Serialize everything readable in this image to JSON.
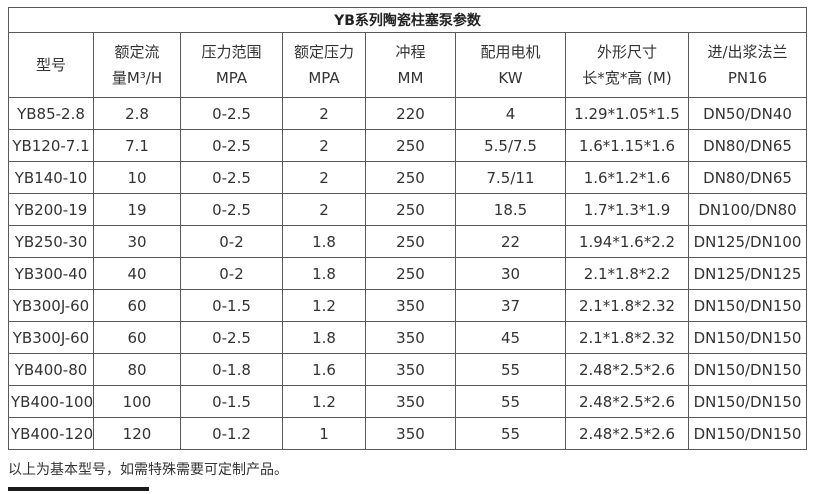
{
  "table": {
    "title": "YB系列陶瓷柱塞泵参数",
    "columns": [
      {
        "key": "model",
        "line1": "型号",
        "line2": ""
      },
      {
        "key": "rated-flow",
        "line1": "额定流",
        "line2": "量M³/H"
      },
      {
        "key": "pressure-range",
        "line1": "压力范围",
        "line2": "MPA"
      },
      {
        "key": "rated-pressure",
        "line1": "额定压力",
        "line2": "MPA"
      },
      {
        "key": "stroke",
        "line1": "冲程",
        "line2": "MM"
      },
      {
        "key": "motor",
        "line1": "配用电机",
        "line2": "KW"
      },
      {
        "key": "dimensions",
        "line1": "外形尺寸",
        "line2": "长*宽*高 (M)"
      },
      {
        "key": "flange",
        "line1": "进/出浆法兰",
        "line2": "PN16"
      }
    ],
    "rows": [
      [
        "YB85-2.8",
        "2.8",
        "0-2.5",
        "2",
        "220",
        "4",
        "1.29*1.05*1.5",
        "DN50/DN40"
      ],
      [
        "YB120-7.1",
        "7.1",
        "0-2.5",
        "2",
        "250",
        "5.5/7.5",
        "1.6*1.15*1.6",
        "DN80/DN65"
      ],
      [
        "YB140-10",
        "10",
        "0-2.5",
        "2",
        "250",
        "7.5/11",
        "1.6*1.2*1.6",
        "DN80/DN65"
      ],
      [
        "YB200-19",
        "19",
        "0-2.5",
        "2",
        "250",
        "18.5",
        "1.7*1.3*1.9",
        "DN100/DN80"
      ],
      [
        "YB250-30",
        "30",
        "0-2",
        "1.8",
        "250",
        "22",
        "1.94*1.6*2.2",
        "DN125/DN100"
      ],
      [
        "YB300-40",
        "40",
        "0-2",
        "1.8",
        "250",
        "30",
        "2.1*1.8*2.2",
        "DN125/DN125"
      ],
      [
        "YB300J-60",
        "60",
        "0-1.5",
        "1.2",
        "350",
        "37",
        "2.1*1.8*2.32",
        "DN150/DN150"
      ],
      [
        "YB300J-60",
        "60",
        "0-2.5",
        "1.8",
        "350",
        "45",
        "2.1*1.8*2.32",
        "DN150/DN150"
      ],
      [
        "YB400-80",
        "80",
        "0-1.8",
        "1.6",
        "350",
        "55",
        "2.48*2.5*2.6",
        "DN150/DN150"
      ],
      [
        "YB400-100",
        "100",
        "0-1.5",
        "1.2",
        "350",
        "55",
        "2.48*2.5*2.6",
        "DN150/DN150"
      ],
      [
        "YB400-120",
        "120",
        "0-1.2",
        "1",
        "350",
        "55",
        "2.48*2.5*2.6",
        "DN150/DN150"
      ]
    ]
  },
  "footer": {
    "note": "以上为基本型号，如需特殊需要可定制产品。"
  }
}
